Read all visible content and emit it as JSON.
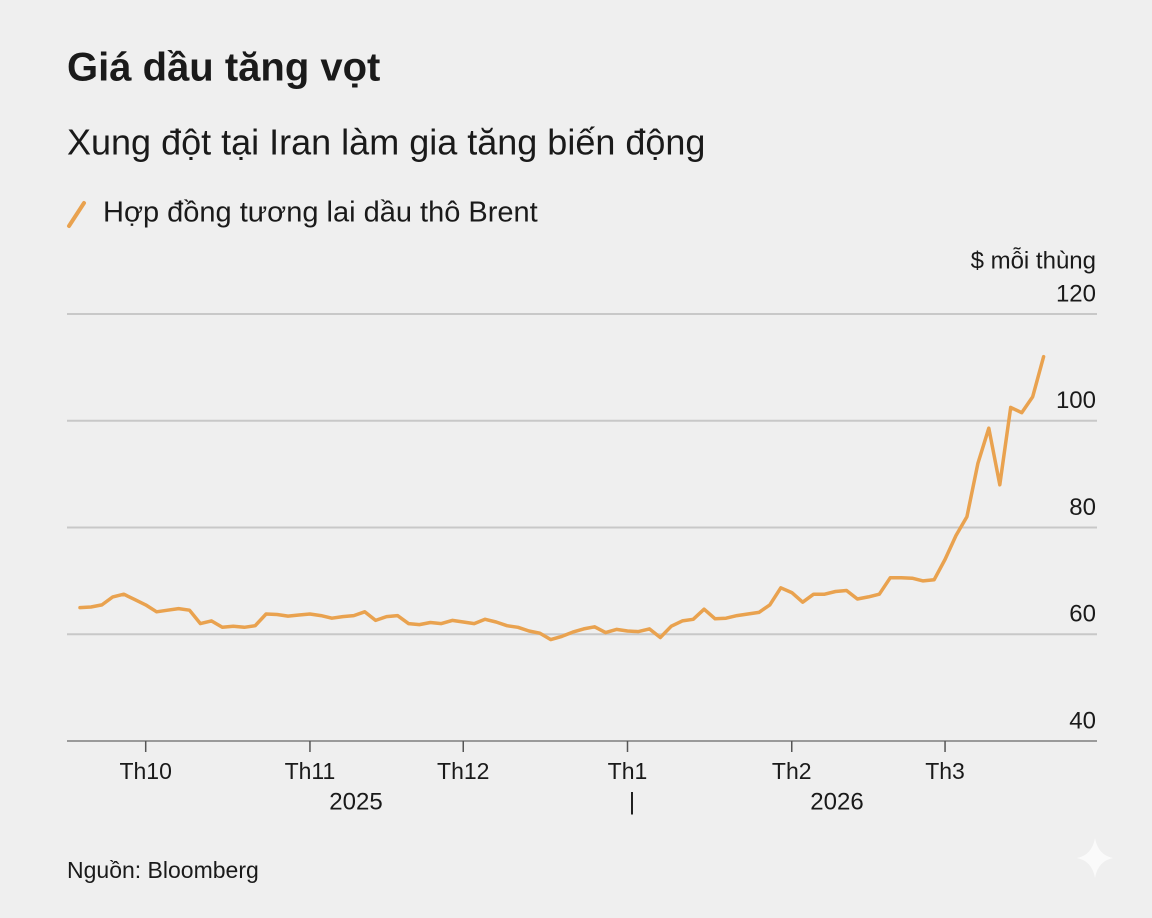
{
  "chart_data": {
    "type": "line",
    "title": "Giá dầu tăng vọt",
    "subtitle": "Xung đột tại Iran làm gia tăng biến động",
    "y_label": "$ mỗi thùng",
    "source": "Nguồn: Bloomberg",
    "categories": [
      null,
      null,
      null,
      null,
      null,
      null,
      "Th10",
      null,
      null,
      null,
      null,
      null,
      null,
      null,
      null,
      null,
      null,
      null,
      null,
      null,
      null,
      "Th11",
      null,
      null,
      null,
      null,
      null,
      null,
      null,
      null,
      null,
      null,
      null,
      null,
      null,
      "Th12",
      null,
      null,
      null,
      null,
      null,
      null,
      null,
      null,
      null,
      null,
      null,
      null,
      null,
      null,
      "Th1",
      null,
      null,
      null,
      null,
      null,
      null,
      null,
      null,
      null,
      null,
      null,
      null,
      null,
      null,
      "Th2",
      null,
      null,
      null,
      null,
      null,
      null,
      null,
      null,
      null,
      null,
      null,
      null,
      null,
      "Th3",
      null,
      null,
      null,
      null,
      null,
      null,
      null,
      null,
      null
    ],
    "x_group_labels": [
      "2025",
      "2026"
    ],
    "series": [
      {
        "name": "Hợp đồng tương lai dầu thô Brent",
        "color": "#e9a24f",
        "values": [
          65.0,
          65.1,
          65.5,
          67.0,
          67.5,
          66.5,
          65.5,
          64.2,
          64.5,
          64.8,
          64.5,
          62.0,
          62.5,
          61.3,
          61.5,
          61.3,
          61.6,
          63.8,
          63.7,
          63.4,
          63.6,
          63.8,
          63.5,
          63.0,
          63.3,
          63.5,
          64.2,
          62.6,
          63.3,
          63.5,
          62.0,
          61.8,
          62.2,
          62.0,
          62.6,
          62.3,
          62.0,
          62.8,
          62.3,
          61.6,
          61.3,
          60.6,
          60.2,
          59.0,
          59.6,
          60.4,
          61.0,
          61.4,
          60.3,
          60.9,
          60.6,
          60.5,
          61.0,
          59.4,
          61.5,
          62.5,
          62.8,
          64.7,
          62.9,
          63.0,
          63.5,
          63.8,
          64.1,
          65.5,
          68.7,
          67.8,
          66.0,
          67.5,
          67.5,
          68.0,
          68.2,
          66.6,
          67.0,
          67.5,
          70.6,
          70.6,
          70.5,
          70.0,
          70.2,
          74.0,
          78.5,
          82.0,
          92.0,
          98.6,
          88.0,
          102.5,
          101.5,
          104.5,
          112.0
        ]
      }
    ],
    "ylim": [
      40,
      120
    ],
    "yticks": [
      40,
      60,
      80,
      100,
      120
    ],
    "grid": true
  }
}
